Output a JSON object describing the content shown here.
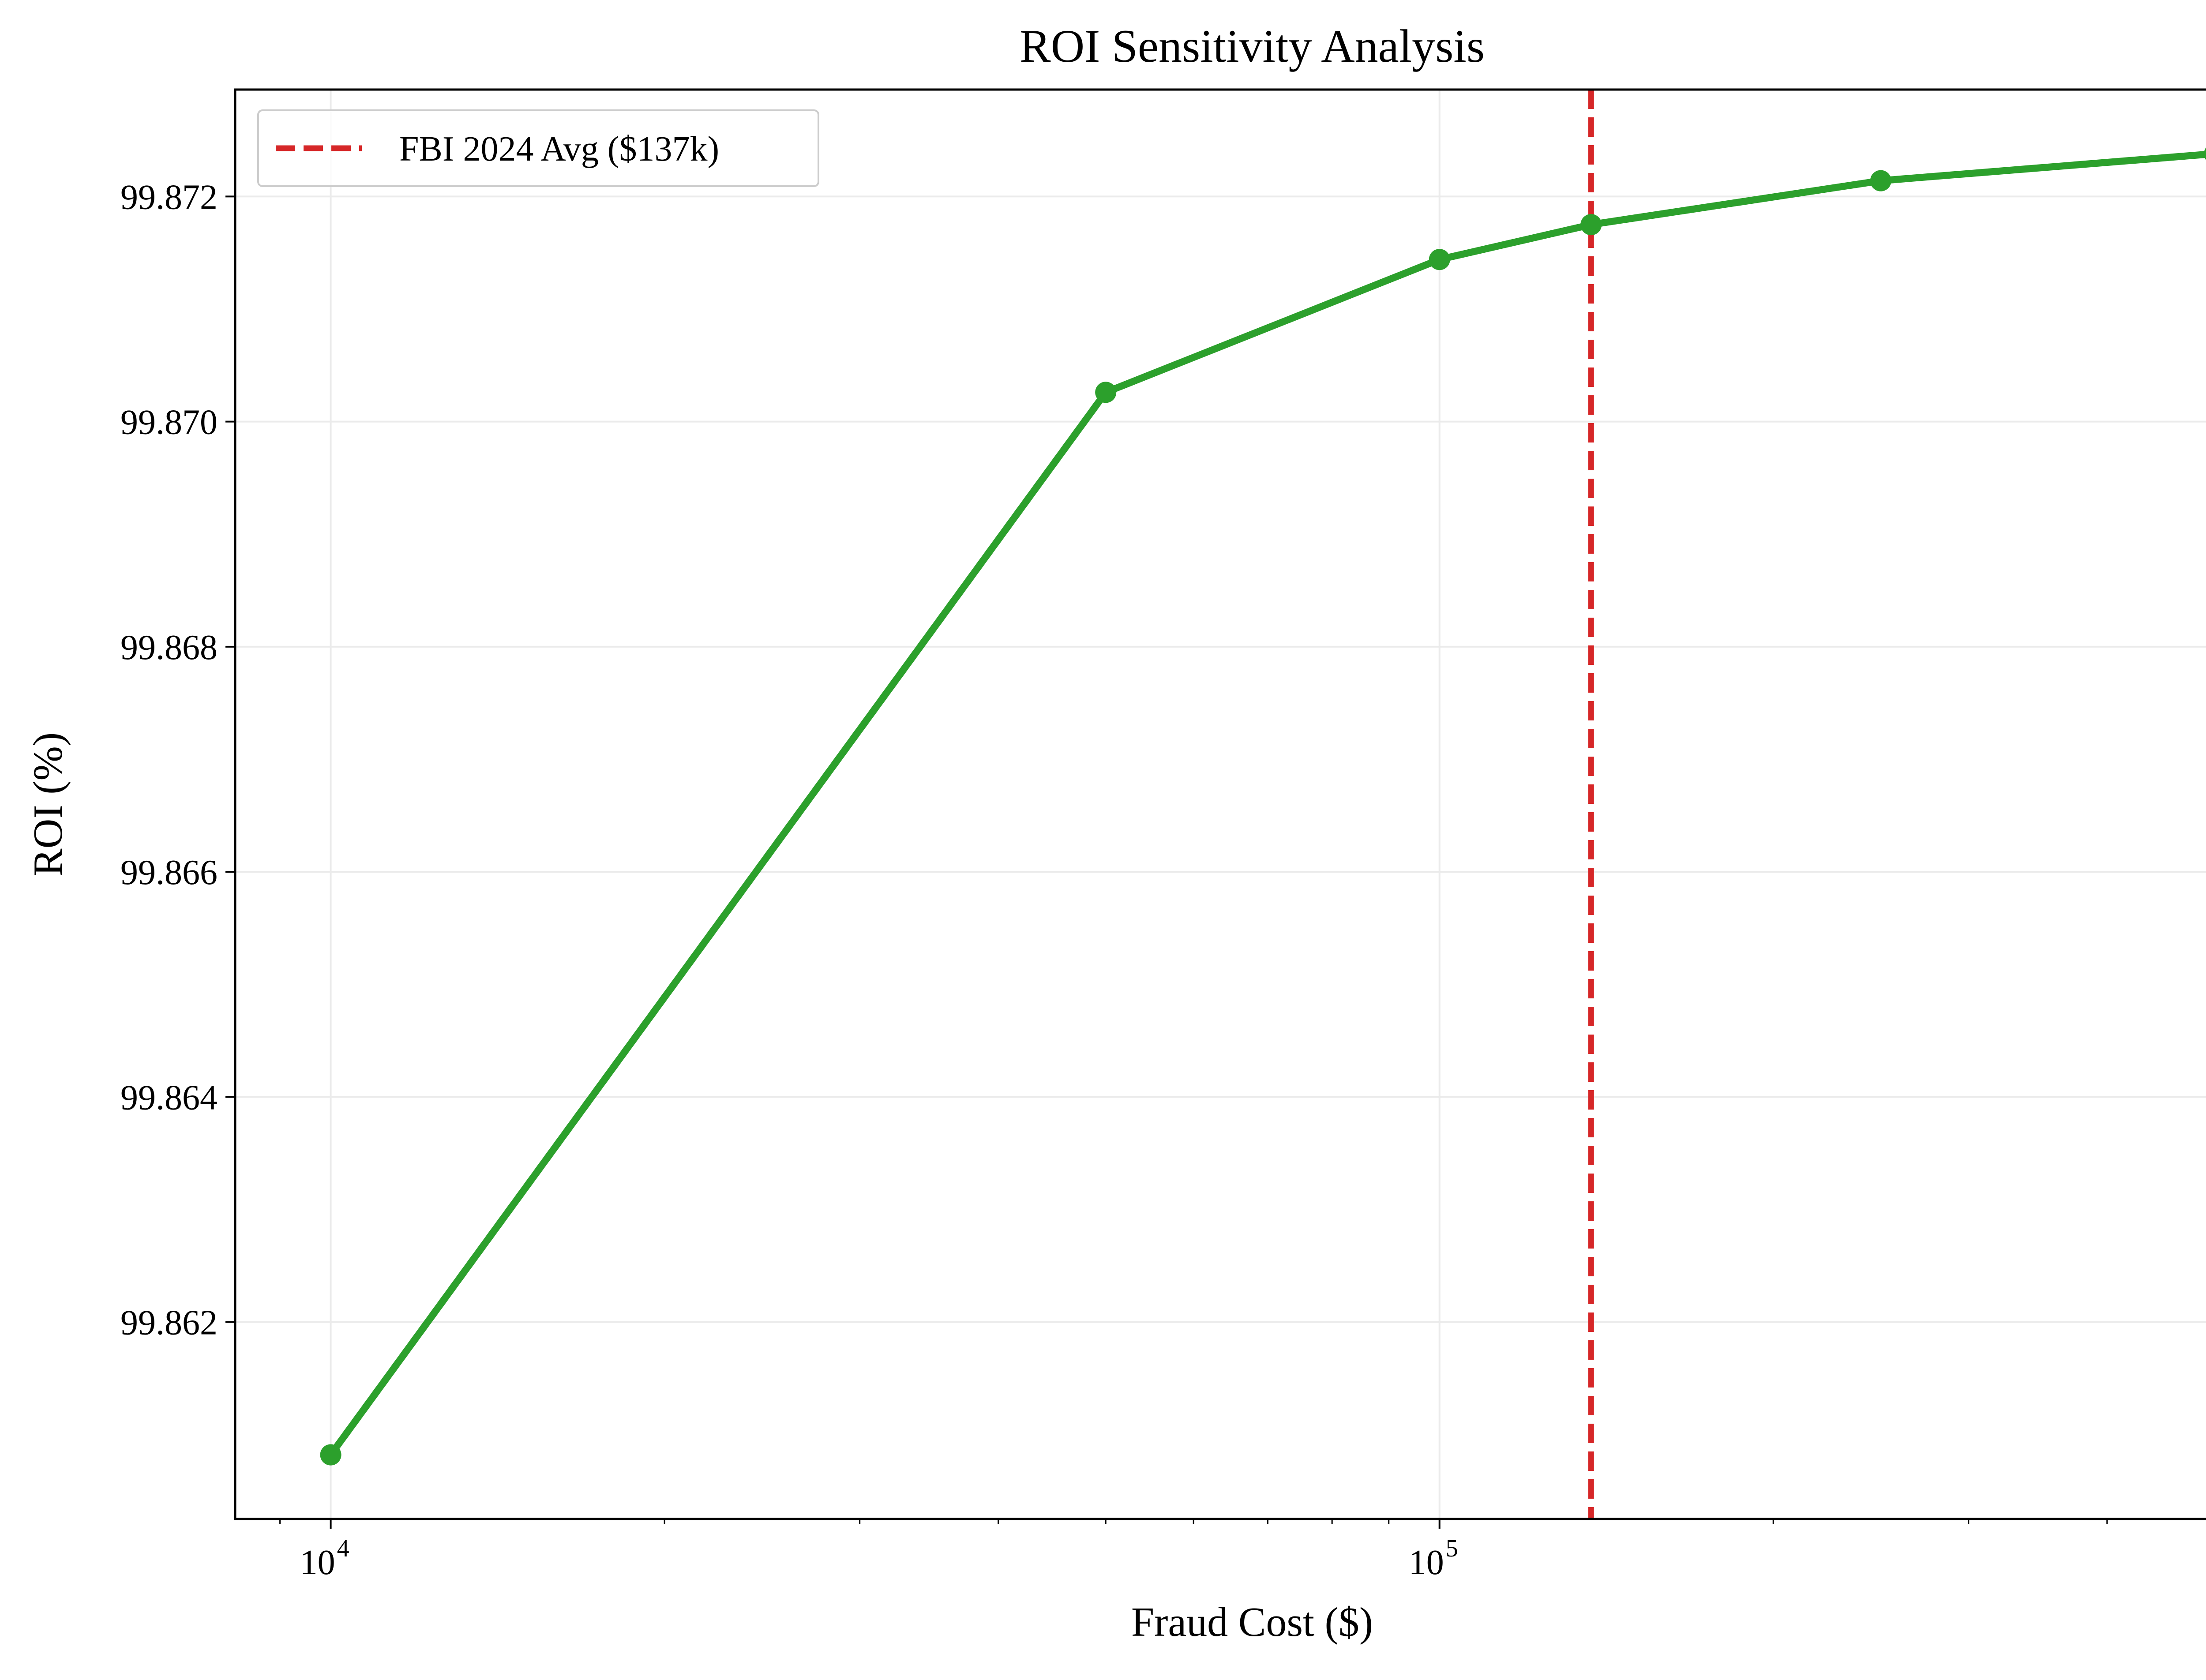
{
  "chart_data": {
    "type": "line",
    "title": "ROI Sensitivity Analysis",
    "xlabel": "Fraud Cost ($)",
    "ylabel": "ROI (%)",
    "x_scale": "log",
    "xlim": [
      8200,
      560000
    ],
    "ylim": [
      99.86025,
      99.87295
    ],
    "x_ticks": [
      {
        "value": 10000,
        "base": "10",
        "exp": "4"
      },
      {
        "value": 100000,
        "base": "10",
        "exp": "5"
      }
    ],
    "y_ticks": [
      {
        "value": 99.862,
        "label": "99.862"
      },
      {
        "value": 99.864,
        "label": "99.864"
      },
      {
        "value": 99.866,
        "label": "99.866"
      },
      {
        "value": 99.868,
        "label": "99.868"
      },
      {
        "value": 99.87,
        "label": "99.870"
      },
      {
        "value": 99.872,
        "label": "99.872"
      }
    ],
    "grid": true,
    "legend_position": "top-left",
    "series": [
      {
        "color": "#2ca02c",
        "marker": "circle",
        "points": [
          {
            "x": 10000,
            "y": 99.86082
          },
          {
            "x": 50000,
            "y": 99.87026
          },
          {
            "x": 100000,
            "y": 99.87144
          },
          {
            "x": 137000,
            "y": 99.87175
          },
          {
            "x": 250000,
            "y": 99.87214
          },
          {
            "x": 500000,
            "y": 99.87238
          }
        ]
      }
    ],
    "reference_lines": [
      {
        "orientation": "vertical",
        "x": 137000,
        "style": "dashed",
        "color": "#d62728",
        "label": "FBI 2024 Avg ($137k)"
      }
    ]
  }
}
